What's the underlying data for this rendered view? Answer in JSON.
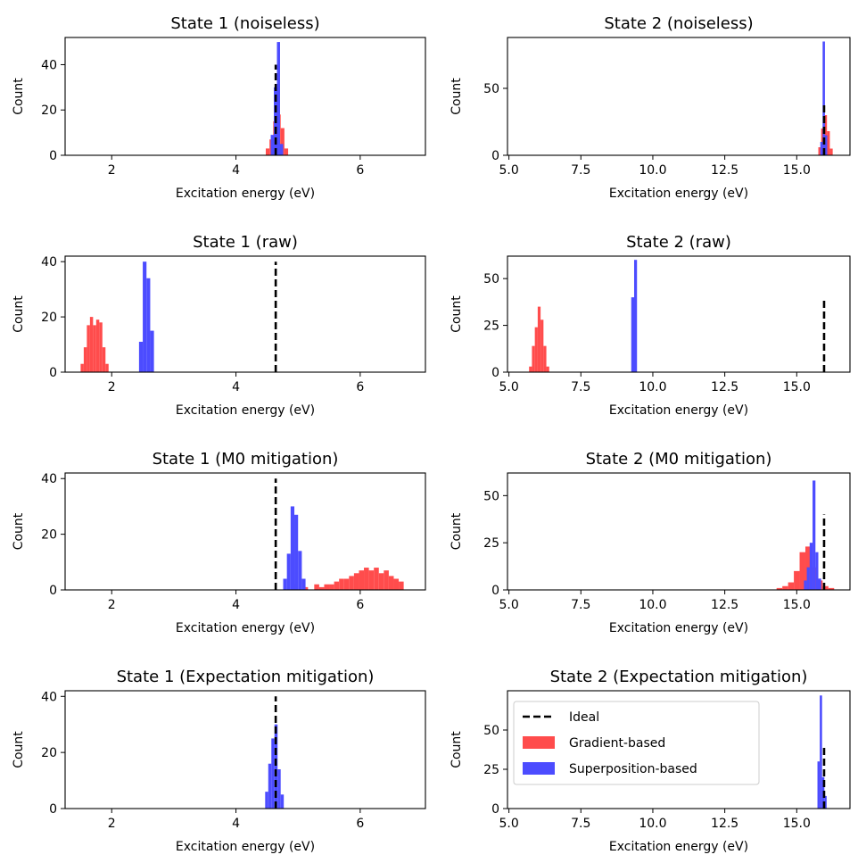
{
  "figure": {
    "colors": {
      "gradient": "#ff4c4c",
      "superposition": "#4c4cff",
      "ideal": "#000000"
    }
  },
  "legend": {
    "items": [
      {
        "label": "Ideal",
        "kind": "dashed-line",
        "color": "#000000"
      },
      {
        "label": "Gradient-based",
        "kind": "patch",
        "color": "#ff4c4c"
      },
      {
        "label": "Superposition-based",
        "kind": "patch",
        "color": "#4c4cff"
      }
    ],
    "placement": "upper-left of bottom-right panel"
  },
  "chart_data": [
    {
      "type": "histogram",
      "title": "State 1 (noiseless)",
      "xlabel": "Excitation energy (eV)",
      "ylabel": "Count",
      "xlim": [
        1.25,
        7.05
      ],
      "ylim": [
        0,
        52
      ],
      "xticks": [
        "2",
        "4",
        "6"
      ],
      "yticks": [
        "0",
        "20",
        "40"
      ],
      "xtick_values": [
        2,
        4,
        6
      ],
      "ytick_values": [
        0,
        20,
        40
      ],
      "ideal": {
        "x": 4.64,
        "height": 40
      },
      "series": [
        {
          "name": "Gradient-based",
          "bins": [
            [
              4.48,
              4.54,
              3
            ],
            [
              4.54,
              4.6,
              7
            ],
            [
              4.6,
              4.66,
              15
            ],
            [
              4.66,
              4.72,
              18
            ],
            [
              4.72,
              4.78,
              12
            ],
            [
              4.78,
              4.84,
              3
            ]
          ]
        },
        {
          "name": "Superposition-based",
          "bins": [
            [
              4.56,
              4.61,
              9
            ],
            [
              4.61,
              4.66,
              30
            ],
            [
              4.66,
              4.71,
              50
            ],
            [
              4.71,
              4.76,
              5
            ]
          ]
        }
      ]
    },
    {
      "type": "histogram",
      "title": "State 2 (noiseless)",
      "xlabel": "Excitation energy (eV)",
      "ylabel": "Count",
      "xlim": [
        4.95,
        16.85
      ],
      "ylim": [
        0,
        88
      ],
      "xticks": [
        "5.0",
        "7.5",
        "10.0",
        "12.5",
        "15.0"
      ],
      "yticks": [
        "0",
        "50"
      ],
      "xtick_values": [
        5,
        7.5,
        10,
        12.5,
        15
      ],
      "ytick_values": [
        0,
        50
      ],
      "ideal": {
        "x": 15.95,
        "height": 40
      },
      "series": [
        {
          "name": "Gradient-based",
          "bins": [
            [
              15.75,
              15.85,
              6
            ],
            [
              15.85,
              15.95,
              20
            ],
            [
              15.95,
              16.05,
              30
            ],
            [
              16.05,
              16.15,
              18
            ],
            [
              16.15,
              16.25,
              5
            ]
          ]
        },
        {
          "name": "Superposition-based",
          "bins": [
            [
              15.82,
              15.9,
              10
            ],
            [
              15.9,
              15.98,
              85
            ],
            [
              15.98,
              16.06,
              15
            ]
          ]
        }
      ]
    },
    {
      "type": "histogram",
      "title": "State 1 (raw)",
      "xlabel": "Excitation energy (eV)",
      "ylabel": "Count",
      "xlim": [
        1.25,
        7.05
      ],
      "ylim": [
        0,
        42
      ],
      "xticks": [
        "2",
        "4",
        "6"
      ],
      "yticks": [
        "0",
        "20",
        "40"
      ],
      "xtick_values": [
        2,
        4,
        6
      ],
      "ytick_values": [
        0,
        20,
        40
      ],
      "ideal": {
        "x": 4.64,
        "height": 40
      },
      "series": [
        {
          "name": "Gradient-based",
          "bins": [
            [
              1.5,
              1.55,
              3
            ],
            [
              1.55,
              1.6,
              9
            ],
            [
              1.6,
              1.65,
              17
            ],
            [
              1.65,
              1.7,
              20
            ],
            [
              1.7,
              1.75,
              17
            ],
            [
              1.75,
              1.8,
              19
            ],
            [
              1.8,
              1.85,
              18
            ],
            [
              1.85,
              1.9,
              9
            ],
            [
              1.9,
              1.95,
              3
            ]
          ]
        },
        {
          "name": "Superposition-based",
          "bins": [
            [
              2.44,
              2.5,
              11
            ],
            [
              2.5,
              2.56,
              40
            ],
            [
              2.56,
              2.62,
              34
            ],
            [
              2.62,
              2.68,
              15
            ]
          ]
        }
      ]
    },
    {
      "type": "histogram",
      "title": "State 2 (raw)",
      "xlabel": "Excitation energy (eV)",
      "ylabel": "Count",
      "xlim": [
        4.95,
        16.85
      ],
      "ylim": [
        0,
        62
      ],
      "xticks": [
        "5.0",
        "7.5",
        "10.0",
        "12.5",
        "15.0"
      ],
      "yticks": [
        "0",
        "25",
        "50"
      ],
      "xtick_values": [
        5,
        7.5,
        10,
        12.5,
        15
      ],
      "ytick_values": [
        0,
        25,
        50
      ],
      "ideal": {
        "x": 15.95,
        "height": 40
      },
      "series": [
        {
          "name": "Gradient-based",
          "bins": [
            [
              5.7,
              5.8,
              3
            ],
            [
              5.8,
              5.9,
              14
            ],
            [
              5.9,
              6.0,
              24
            ],
            [
              6.0,
              6.1,
              35
            ],
            [
              6.1,
              6.2,
              28
            ],
            [
              6.2,
              6.3,
              14
            ],
            [
              6.3,
              6.4,
              3
            ]
          ]
        },
        {
          "name": "Superposition-based",
          "bins": [
            [
              9.25,
              9.35,
              40
            ],
            [
              9.35,
              9.45,
              60
            ]
          ]
        }
      ]
    },
    {
      "type": "histogram",
      "title": "State 1 (M0 mitigation)",
      "xlabel": "Excitation energy (eV)",
      "ylabel": "Count",
      "xlim": [
        1.25,
        7.05
      ],
      "ylim": [
        0,
        42
      ],
      "xticks": [
        "2",
        "4",
        "6"
      ],
      "yticks": [
        "0",
        "20",
        "40"
      ],
      "xtick_values": [
        2,
        4,
        6
      ],
      "ytick_values": [
        0,
        20,
        40
      ],
      "ideal": {
        "x": 4.64,
        "height": 40
      },
      "series": [
        {
          "name": "Gradient-based",
          "bins": [
            [
              4.9,
              4.98,
              2
            ],
            [
              5.08,
              5.16,
              1
            ],
            [
              5.26,
              5.34,
              2
            ],
            [
              5.34,
              5.42,
              1
            ],
            [
              5.42,
              5.5,
              2
            ],
            [
              5.5,
              5.58,
              2
            ],
            [
              5.58,
              5.66,
              3
            ],
            [
              5.66,
              5.74,
              4
            ],
            [
              5.74,
              5.82,
              4
            ],
            [
              5.82,
              5.9,
              5
            ],
            [
              5.9,
              5.98,
              6
            ],
            [
              5.98,
              6.06,
              7
            ],
            [
              6.06,
              6.14,
              8
            ],
            [
              6.14,
              6.22,
              7
            ],
            [
              6.22,
              6.3,
              8
            ],
            [
              6.3,
              6.38,
              6
            ],
            [
              6.38,
              6.46,
              7
            ],
            [
              6.46,
              6.54,
              5
            ],
            [
              6.54,
              6.62,
              4
            ],
            [
              6.62,
              6.7,
              3
            ]
          ]
        },
        {
          "name": "Superposition-based",
          "bins": [
            [
              4.76,
              4.82,
              4
            ],
            [
              4.82,
              4.88,
              13
            ],
            [
              4.88,
              4.94,
              30
            ],
            [
              4.94,
              5.0,
              27
            ],
            [
              5.0,
              5.06,
              14
            ],
            [
              5.06,
              5.12,
              4
            ]
          ]
        }
      ]
    },
    {
      "type": "histogram",
      "title": "State 2 (M0 mitigation)",
      "xlabel": "Excitation energy (eV)",
      "ylabel": "Count",
      "xlim": [
        4.95,
        16.85
      ],
      "ylim": [
        0,
        62
      ],
      "xticks": [
        "5.0",
        "7.5",
        "10.0",
        "12.5",
        "15.0"
      ],
      "yticks": [
        "0",
        "25",
        "50"
      ],
      "xtick_values": [
        5,
        7.5,
        10,
        12.5,
        15
      ],
      "ytick_values": [
        0,
        25,
        50
      ],
      "ideal": {
        "x": 15.95,
        "height": 40
      },
      "series": [
        {
          "name": "Gradient-based",
          "bins": [
            [
              14.3,
              14.5,
              1
            ],
            [
              14.5,
              14.7,
              2
            ],
            [
              14.7,
              14.9,
              4
            ],
            [
              14.9,
              15.1,
              10
            ],
            [
              15.1,
              15.3,
              20
            ],
            [
              15.3,
              15.5,
              23
            ],
            [
              15.5,
              15.7,
              12
            ],
            [
              15.7,
              15.9,
              5
            ],
            [
              15.9,
              16.1,
              2
            ],
            [
              16.1,
              16.3,
              1
            ]
          ]
        },
        {
          "name": "Superposition-based",
          "bins": [
            [
              15.25,
              15.35,
              5
            ],
            [
              15.35,
              15.45,
              12
            ],
            [
              15.45,
              15.55,
              25
            ],
            [
              15.55,
              15.65,
              58
            ],
            [
              15.65,
              15.75,
              20
            ],
            [
              15.75,
              15.85,
              6
            ]
          ]
        }
      ]
    },
    {
      "type": "histogram",
      "title": "State 1 (Expectation mitigation)",
      "xlabel": "Excitation energy (eV)",
      "ylabel": "Count",
      "xlim": [
        1.25,
        7.05
      ],
      "ylim": [
        0,
        42
      ],
      "xticks": [
        "2",
        "4",
        "6"
      ],
      "yticks": [
        "0",
        "20",
        "40"
      ],
      "xtick_values": [
        2,
        4,
        6
      ],
      "ytick_values": [
        0,
        20,
        40
      ],
      "ideal": {
        "x": 4.64,
        "height": 40
      },
      "series": [
        {
          "name": "Gradient-based",
          "bins": []
        },
        {
          "name": "Superposition-based",
          "bins": [
            [
              4.47,
              4.52,
              6
            ],
            [
              4.52,
              4.57,
              16
            ],
            [
              4.57,
              4.62,
              25
            ],
            [
              4.62,
              4.67,
              30
            ],
            [
              4.67,
              4.72,
              14
            ],
            [
              4.72,
              4.77,
              5
            ]
          ]
        }
      ]
    },
    {
      "type": "histogram",
      "title": "State 2 (Expectation mitigation)",
      "xlabel": "Excitation energy (eV)",
      "ylabel": "Count",
      "xlim": [
        4.95,
        16.85
      ],
      "ylim": [
        0,
        75
      ],
      "xticks": [
        "5.0",
        "7.5",
        "10.0",
        "12.5",
        "15.0"
      ],
      "yticks": [
        "0",
        "25",
        "50"
      ],
      "xtick_values": [
        5,
        7.5,
        10,
        12.5,
        15
      ],
      "ytick_values": [
        0,
        25,
        50
      ],
      "ideal": {
        "x": 15.95,
        "height": 40
      },
      "series": [
        {
          "name": "Gradient-based",
          "bins": []
        },
        {
          "name": "Superposition-based",
          "bins": [
            [
              15.72,
              15.8,
              30
            ],
            [
              15.8,
              15.88,
              72
            ],
            [
              15.88,
              15.96,
              20
            ],
            [
              15.96,
              16.04,
              8
            ]
          ]
        }
      ]
    }
  ]
}
